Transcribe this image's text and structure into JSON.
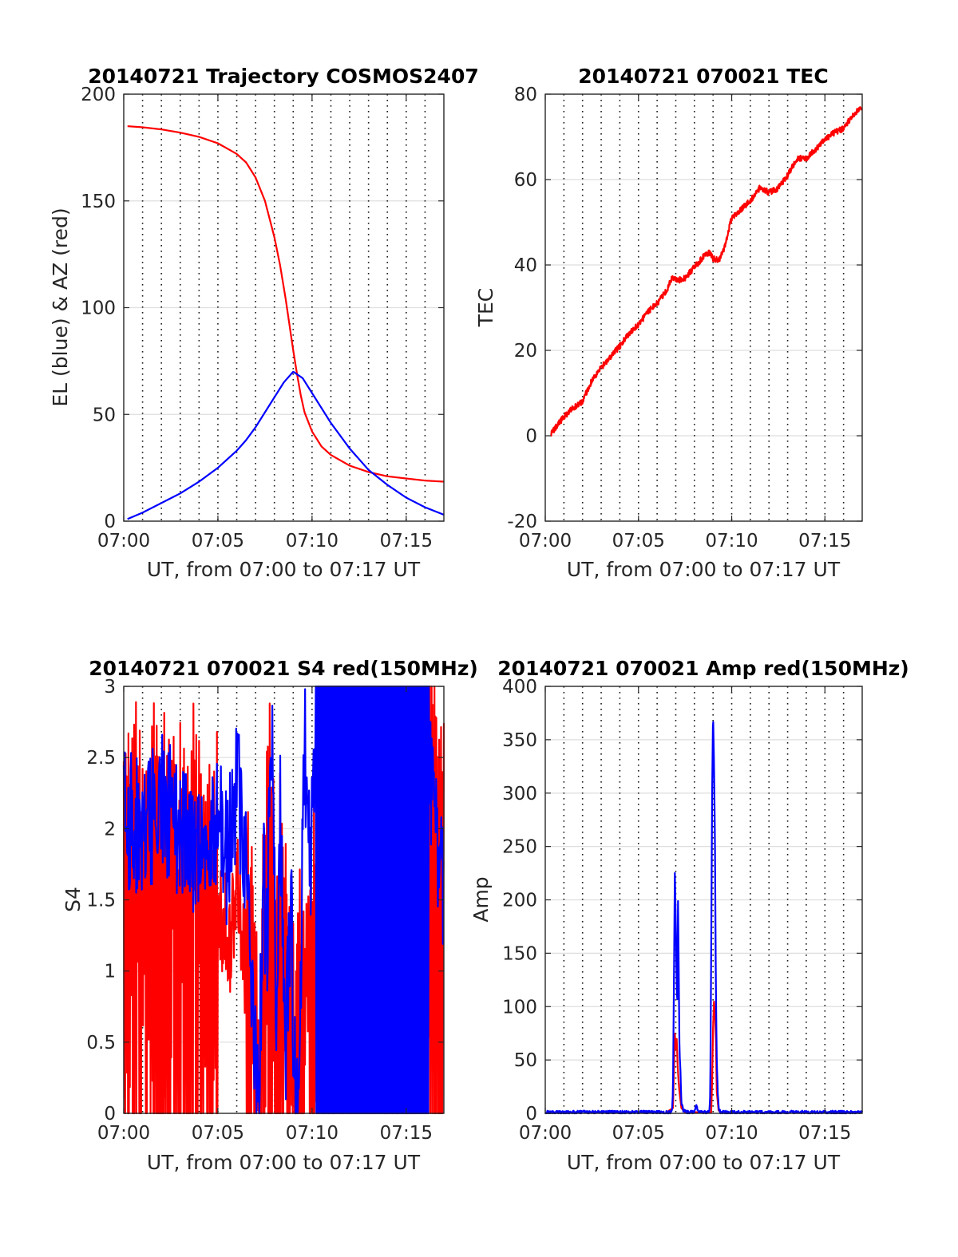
{
  "chart_data": [
    {
      "type": "line",
      "title": "20140721 Trajectory COSMOS2407",
      "xlabel": "UT, from 07:00 to 07:17 UT",
      "ylabel": "EL (blue) & AZ (red)",
      "xlim": [
        0,
        17
      ],
      "ylim": [
        0,
        200
      ],
      "xticks": [
        0,
        5,
        10,
        15
      ],
      "xticklabels": [
        "07:00",
        "07:05",
        "07:10",
        "07:15"
      ],
      "yticks": [
        0,
        50,
        100,
        150,
        200
      ],
      "yticklabels": [
        "0",
        "50",
        "100",
        "150",
        "200"
      ],
      "grid": true,
      "minor_vgrid_step": 1,
      "series": [
        {
          "color": "#ff0000",
          "x": [
            0.2,
            1,
            2,
            3,
            4,
            5,
            6,
            6.5,
            7,
            7.5,
            8,
            8.3,
            8.6,
            8.8,
            9.0,
            9.2,
            9.4,
            9.6,
            10,
            10.5,
            11,
            12,
            13,
            14,
            15,
            16,
            17
          ],
          "y": [
            185,
            184.5,
            183.5,
            182,
            180,
            177,
            172,
            168,
            161,
            150,
            133,
            120,
            104,
            92,
            80,
            69,
            59,
            51,
            42,
            35,
            31,
            26,
            23,
            21,
            20,
            19,
            18.5
          ]
        },
        {
          "color": "#0000ff",
          "x": [
            0.2,
            1,
            2,
            3,
            4,
            5,
            6,
            6.5,
            7,
            7.5,
            8,
            8.5,
            9.0,
            9.5,
            10,
            10.5,
            11,
            12,
            13,
            14,
            15,
            16,
            17
          ],
          "y": [
            1,
            4,
            8.5,
            13,
            18.5,
            25,
            33,
            38,
            44,
            51,
            58,
            65,
            70,
            67,
            60,
            53,
            46,
            34,
            24,
            17,
            11,
            6.5,
            3
          ]
        }
      ]
    },
    {
      "type": "line",
      "title": "20140721 070021 TEC",
      "xlabel": "UT, from 07:00 to 07:17 UT",
      "ylabel": "TEC",
      "xlim": [
        0,
        17
      ],
      "ylim": [
        -20,
        80
      ],
      "xticks": [
        0,
        5,
        10,
        15
      ],
      "xticklabels": [
        "07:00",
        "07:05",
        "07:10",
        "07:15"
      ],
      "yticks": [
        -20,
        0,
        20,
        40,
        60,
        80
      ],
      "yticklabels": [
        "-20",
        "0",
        "20",
        "40",
        "60",
        "80"
      ],
      "grid": true,
      "minor_vgrid_step": 1,
      "series": [
        {
          "color": "#ff0000",
          "noise": 0.7,
          "x": [
            0.3,
            0.5,
            1,
            1.5,
            2,
            2.5,
            3,
            4,
            4.5,
            5,
            5.5,
            6,
            6.5,
            6.8,
            7.2,
            7.5,
            8,
            8.5,
            8.8,
            9,
            9.3,
            9.6,
            10,
            10.5,
            11,
            11.5,
            12,
            12.5,
            13,
            13.5,
            14,
            14.5,
            15,
            15.5,
            16,
            16.5,
            17
          ],
          "y": [
            0.3,
            1.5,
            4.5,
            6.5,
            8,
            13,
            16,
            21,
            24,
            26,
            29,
            31,
            34,
            37,
            36.5,
            37,
            39.5,
            42,
            43,
            41.5,
            41,
            44,
            51,
            53,
            55,
            58,
            57,
            58,
            61,
            65,
            65,
            67,
            69.5,
            71,
            72,
            75,
            77
          ]
        }
      ]
    },
    {
      "type": "line",
      "title": "20140721 070021 S4 red(150MHz)",
      "xlabel": "UT, from 07:00 to 07:17 UT",
      "ylabel": "S4",
      "xlim": [
        0,
        17
      ],
      "ylim": [
        0,
        3
      ],
      "xticks": [
        0,
        5,
        10,
        15
      ],
      "xticklabels": [
        "07:00",
        "07:05",
        "07:10",
        "07:15"
      ],
      "yticks": [
        0,
        0.5,
        1,
        1.5,
        2,
        2.5,
        3
      ],
      "yticklabels": [
        "0",
        "0.5",
        "1",
        "1.5",
        "2",
        "2.5",
        "3"
      ],
      "grid": true,
      "minor_vgrid_step": 1,
      "series": [
        {
          "color": "#ff0000",
          "style": "red-band",
          "x": [
            0,
            1,
            2,
            3,
            3.5,
            4,
            4.6,
            5,
            5.6,
            6,
            6.4,
            6.9,
            7.0,
            7.2,
            7.4,
            7.7,
            8,
            8.3,
            8.6,
            8.9,
            9.0,
            9.2,
            9.4,
            9.7,
            10,
            11,
            12,
            13,
            14,
            15,
            15.5,
            16,
            16.5,
            16.8,
            17
          ],
          "y": [
            2.0,
            1.8,
            1.7,
            1.6,
            1.8,
            1.5,
            1.4,
            1.5,
            1.2,
            1.6,
            1.1,
            0.8,
            0.3,
            0.1,
            0.8,
            1.9,
            1.0,
            1.2,
            0.8,
            0.6,
            0.15,
            0.1,
            0.7,
            0.9,
            1.0,
            1.2,
            1.4,
            1.7,
            1.9,
            1.4,
            1.6,
            2.3,
            2.2,
            1.9,
            1.6
          ]
        },
        {
          "color": "#0000ff",
          "style": "blue-band",
          "x": [
            0,
            1,
            2,
            3,
            4,
            5,
            5.5,
            6,
            6.5,
            6.9,
            7.0,
            7.2,
            7.4,
            7.6,
            7.9,
            8.1,
            8.3,
            8.6,
            8.9,
            9.0,
            9.3,
            9.6,
            9.9,
            10.3,
            11,
            12,
            13,
            14,
            15,
            15.5,
            16,
            16.5,
            17
          ],
          "y": [
            2.1,
            2.0,
            2.2,
            2.0,
            1.8,
            2.1,
            1.8,
            2.3,
            1.8,
            0.8,
            0.2,
            0.2,
            1.7,
            1.2,
            2.8,
            0.6,
            2.1,
            0.5,
            1.7,
            0.2,
            0.15,
            2.6,
            1.6,
            2.9,
            3,
            3,
            3,
            3,
            3,
            2.8,
            2.5,
            2.2,
            1.4
          ]
        }
      ]
    },
    {
      "type": "line",
      "title": "20140721 070021 Amp red(150MHz)",
      "xlabel": "UT, from 07:00 to 07:17 UT",
      "ylabel": "Amp",
      "xlim": [
        0,
        17
      ],
      "ylim": [
        0,
        400
      ],
      "xticks": [
        0,
        5,
        10,
        15
      ],
      "xticklabels": [
        "07:00",
        "07:05",
        "07:10",
        "07:15"
      ],
      "yticks": [
        0,
        50,
        100,
        150,
        200,
        250,
        300,
        350,
        400
      ],
      "yticklabels": [
        "0",
        "50",
        "100",
        "150",
        "200",
        "250",
        "300",
        "350",
        "400"
      ],
      "grid": true,
      "minor_vgrid_step": 1,
      "series": [
        {
          "color": "#ff0000",
          "x": [
            6.5,
            6.85,
            6.9,
            6.95,
            7.0,
            7.05,
            7.1,
            7.15,
            7.2,
            7.3,
            7.5,
            8.9,
            8.95,
            9.0,
            9.05,
            9.1,
            9.15,
            9.2,
            9.3
          ],
          "y": [
            1,
            5,
            40,
            75,
            60,
            70,
            45,
            30,
            20,
            5,
            1,
            1,
            30,
            80,
            105,
            95,
            70,
            20,
            2
          ]
        },
        {
          "color": "#0000ff",
          "noise": 1.5,
          "x": [
            0,
            6.7,
            6.8,
            6.85,
            6.9,
            6.95,
            7.0,
            7.03,
            7.08,
            7.12,
            7.15,
            7.2,
            7.25,
            7.3,
            7.4,
            7.6,
            8.0,
            8.1,
            8.2,
            8.3,
            8.5,
            8.8,
            8.85,
            8.9,
            8.95,
            9.0,
            9.05,
            9.1,
            9.15,
            9.2,
            9.25,
            9.3,
            9.4,
            17
          ],
          "y": [
            1,
            1,
            3,
            20,
            120,
            225,
            180,
            140,
            100,
            200,
            150,
            60,
            40,
            10,
            3,
            1,
            1,
            8,
            2,
            1,
            1,
            1,
            20,
            150,
            300,
            375,
            330,
            260,
            120,
            50,
            20,
            5,
            1,
            1
          ]
        }
      ]
    }
  ]
}
